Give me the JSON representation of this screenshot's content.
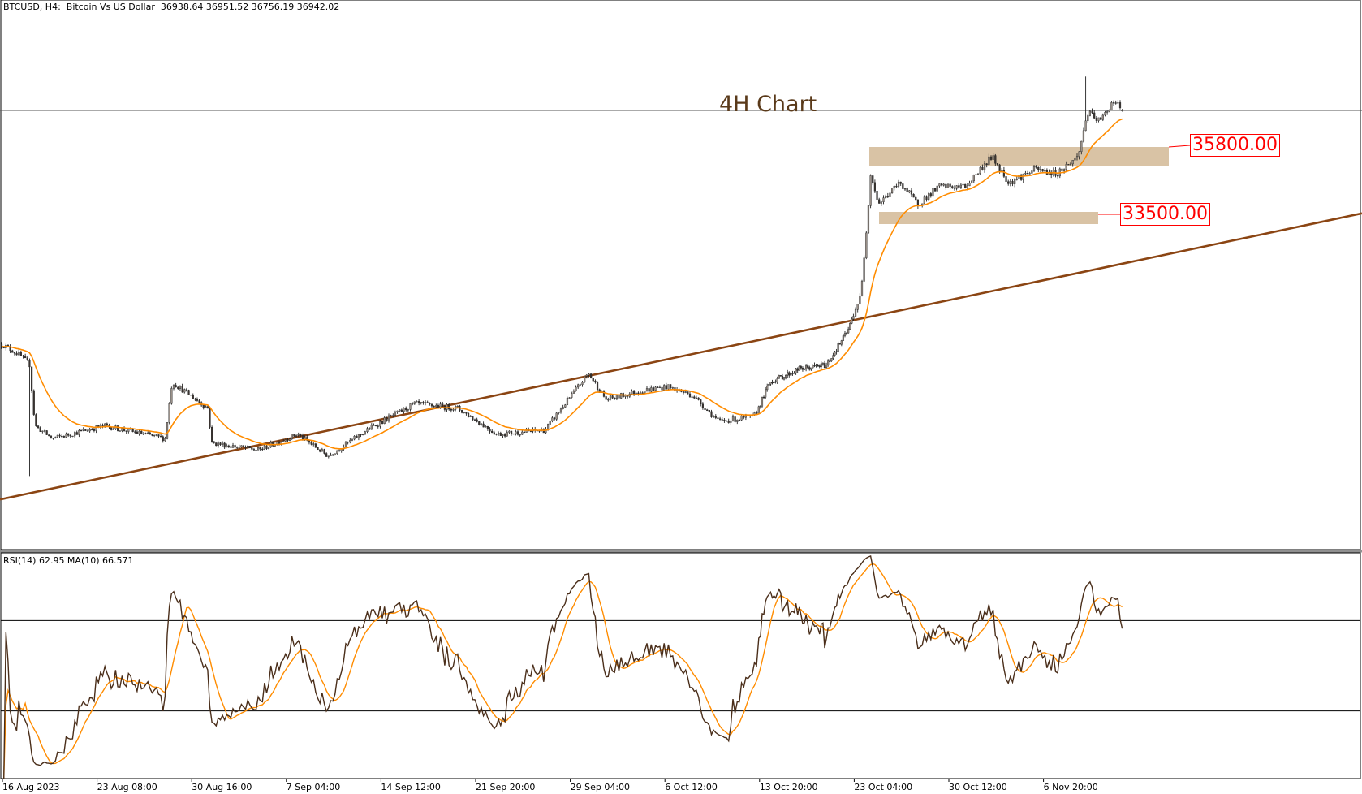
{
  "header": {
    "symbol": "BTCUSD, H4:  Bitcoin Vs US Dollar  36938.64 36951.52 36756.19 36942.02"
  },
  "annotations": {
    "title": "4H Chart",
    "levels": [
      {
        "label": "35800.00",
        "price": 35800
      },
      {
        "label": "33500.00",
        "price": 33500
      }
    ],
    "zone_color": "#d9c3a5",
    "level_color": "#ff0000",
    "trendline_color": "#8b4513"
  },
  "rsi": {
    "label": "RSI(14) 62.95 MA(10) 66.571",
    "period": 14,
    "ma_period": 10,
    "levels": [
      70,
      30
    ],
    "range": [
      0,
      100
    ],
    "line_color": "#4a2e1a",
    "ma_color": "#ff8c00"
  },
  "chart_data": {
    "type": "candlestick",
    "timeframe": "H4",
    "last_ohlc": {
      "open": 36938.64,
      "high": 36951.52,
      "low": 36756.19,
      "close": 36942.02
    },
    "current_price_line": 36942.02,
    "ma_color": "#ff8c00",
    "x_ticks": [
      {
        "label": "16 Aug 2023",
        "time": "2023-08-16T00:00"
      },
      {
        "label": "23 Aug 08:00",
        "time": "2023-08-23T08:00"
      },
      {
        "label": "30 Aug 16:00",
        "time": "2023-08-30T16:00"
      },
      {
        "label": "7 Sep 04:00",
        "time": "2023-09-07T04:00"
      },
      {
        "label": "14 Sep 12:00",
        "time": "2023-09-14T12:00"
      },
      {
        "label": "21 Sep 20:00",
        "time": "2023-09-21T20:00"
      },
      {
        "label": "29 Sep 04:00",
        "time": "2023-09-29T04:00"
      },
      {
        "label": "6 Oct 12:00",
        "time": "2023-10-06T12:00"
      },
      {
        "label": "13 Oct 20:00",
        "time": "2023-10-13T20:00"
      },
      {
        "label": "23 Oct 04:00",
        "time": "2023-10-23T04:00"
      },
      {
        "label": "30 Oct 12:00",
        "time": "2023-10-30T12:00"
      },
      {
        "label": "6 Nov 20:00",
        "time": "2023-11-06T20:00"
      }
    ],
    "approx_close_path": [
      [
        "2023-08-16T00:00",
        28950
      ],
      [
        "2023-08-17T08:00",
        28600
      ],
      [
        "2023-08-18T04:00",
        28250
      ],
      [
        "2023-08-18T14:00",
        26160
      ],
      [
        "2023-08-19T22:00",
        25720
      ],
      [
        "2023-08-23T23:00",
        26160
      ],
      [
        "2023-08-28T16:00",
        25720
      ],
      [
        "2023-08-29T05:00",
        27650
      ],
      [
        "2023-09-01T00:00",
        26760
      ],
      [
        "2023-09-01T08:00",
        25570
      ],
      [
        "2023-09-05T01:00",
        25330
      ],
      [
        "2023-09-08T02:00",
        25870
      ],
      [
        "2023-09-10T11:00",
        25125
      ],
      [
        "2023-09-13T19:00",
        26100
      ],
      [
        "2023-09-17T04:00",
        26910
      ],
      [
        "2023-09-20T12:00",
        26760
      ],
      [
        "2023-09-23T13:00",
        25870
      ],
      [
        "2023-09-27T06:00",
        26015
      ],
      [
        "2023-09-30T15:00",
        27950
      ],
      [
        "2023-10-02T00:00",
        27055
      ],
      [
        "2023-10-04T16:00",
        27350
      ],
      [
        "2023-10-06T17:00",
        27500
      ],
      [
        "2023-10-08T17:00",
        27200
      ],
      [
        "2023-10-10T17:00",
        26310
      ],
      [
        "2023-10-13T10:00",
        26460
      ],
      [
        "2023-10-14T22:00",
        27650
      ],
      [
        "2023-10-17T20:00",
        28100
      ],
      [
        "2023-10-20T12:00",
        28240
      ],
      [
        "2023-10-22T16:00",
        29430
      ],
      [
        "2023-10-23T18:00",
        30620
      ],
      [
        "2023-10-24T06:00",
        33290
      ],
      [
        "2023-10-24T12:00",
        34780
      ],
      [
        "2023-10-25T03:00",
        33740
      ],
      [
        "2023-10-26T19:00",
        34480
      ],
      [
        "2023-10-28T03:00",
        33740
      ],
      [
        "2023-10-29T20:00",
        34330
      ],
      [
        "2023-10-31T20:00",
        34330
      ],
      [
        "2023-11-02T21:00",
        35370
      ],
      [
        "2023-11-04T05:00",
        34480
      ],
      [
        "2023-11-06T06:00",
        34925
      ],
      [
        "2023-11-07T22:00",
        34780
      ],
      [
        "2023-11-09T14:00",
        35370
      ],
      [
        "2023-11-10T07:00",
        36855
      ],
      [
        "2023-11-11T07:00",
        36560
      ],
      [
        "2023-11-12T08:00",
        37300
      ],
      [
        "2023-11-13T00:00",
        36942
      ]
    ],
    "notable_wicks": [
      [
        "2023-08-18T04:00",
        "low",
        24440
      ],
      [
        "2023-10-15T06:00",
        "high",
        30260
      ],
      [
        "2023-11-10T03:00",
        "high",
        38100
      ]
    ],
    "trendline": [
      [
        "2023-08-16T00:00",
        23650
      ],
      [
        "2023-11-13T00:00",
        31700
      ]
    ]
  }
}
